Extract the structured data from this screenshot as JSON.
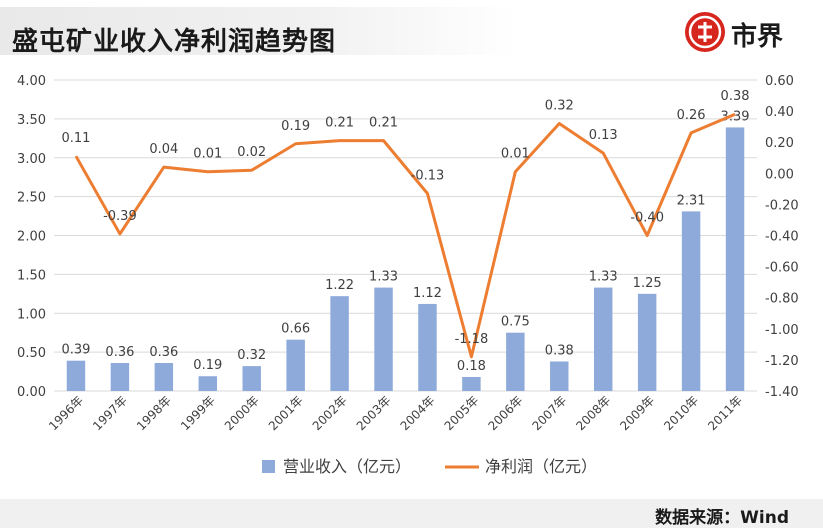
{
  "header": {
    "title": "盛屯矿业收入净利润趋势图",
    "logo_text": "市界"
  },
  "footer": {
    "source": "数据来源：Wind"
  },
  "colors": {
    "bar": "#8eaadb",
    "line": "#ed7d31",
    "logo": "#d7261e"
  },
  "chart_data": {
    "type": "bar",
    "categories": [
      "1996年",
      "1997年",
      "1998年",
      "1999年",
      "2000年",
      "2001年",
      "2002年",
      "2003年",
      "2004年",
      "2005年",
      "2006年",
      "2007年",
      "2008年",
      "2009年",
      "2010年",
      "2011年"
    ],
    "series": [
      {
        "name": "营业收入（亿元）",
        "type": "bar",
        "axis": "left",
        "values": [
          0.39,
          0.36,
          0.36,
          0.19,
          0.32,
          0.66,
          1.22,
          1.33,
          1.12,
          0.18,
          0.75,
          0.38,
          1.33,
          1.25,
          2.31,
          3.39
        ]
      },
      {
        "name": "净利润（亿元）",
        "type": "line",
        "axis": "right",
        "values": [
          0.11,
          -0.39,
          0.04,
          0.01,
          0.02,
          0.19,
          0.21,
          0.21,
          -0.13,
          -1.18,
          0.01,
          0.32,
          0.13,
          -0.4,
          0.26,
          0.38
        ]
      }
    ],
    "left_ticks": [
      "0.00",
      "0.50",
      "1.00",
      "1.50",
      "2.00",
      "2.50",
      "3.00",
      "3.50",
      "4.00"
    ],
    "right_ticks": [
      "-1.40",
      "-1.20",
      "-1.00",
      "-0.80",
      "-0.60",
      "-0.40",
      "-0.20",
      "0.00",
      "0.20",
      "0.40",
      "0.60"
    ],
    "ylim_left": [
      0,
      4
    ],
    "ylim_right": [
      -1.4,
      0.6
    ],
    "grid": true,
    "legend_position": "bottom"
  }
}
